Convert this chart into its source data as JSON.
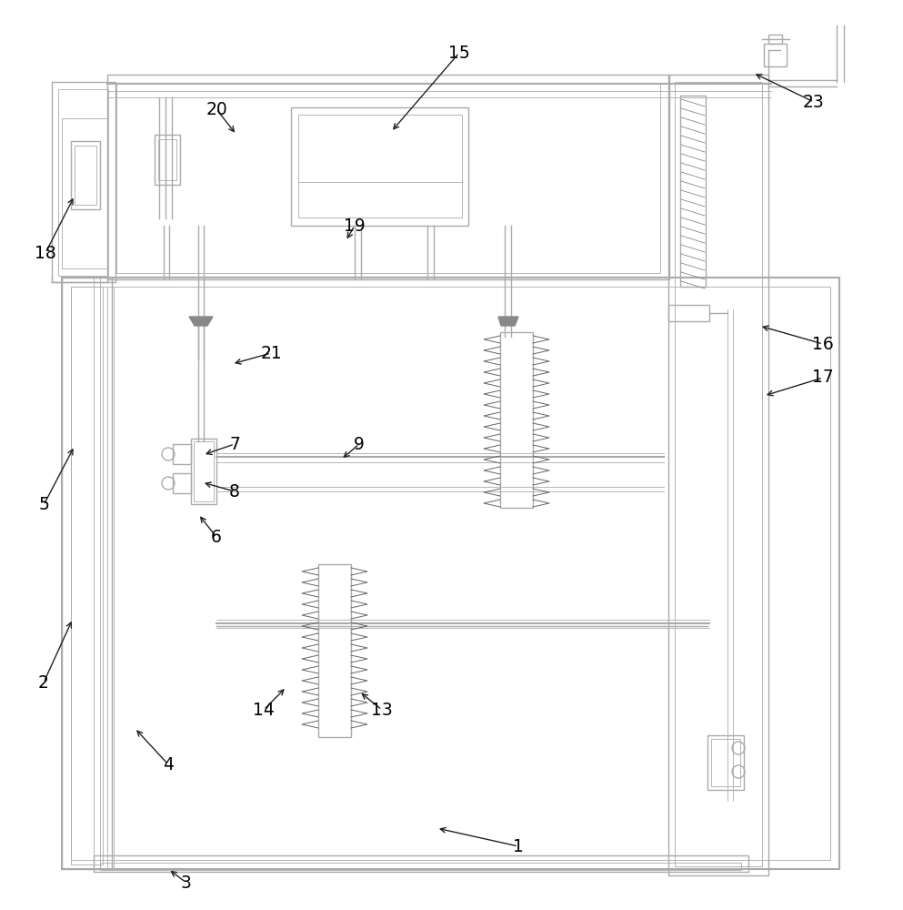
{
  "bg_color": "#ffffff",
  "lc": "#aaaaaa",
  "dc": "#222222",
  "lw_thin": 0.6,
  "lw_med": 1.0,
  "lw_thick": 1.5,
  "labels": {
    "1": [
      570,
      930,
      480,
      910
    ],
    "2": [
      48,
      750,
      80,
      680
    ],
    "3": [
      205,
      970,
      185,
      955
    ],
    "4": [
      185,
      840,
      148,
      800
    ],
    "5": [
      48,
      555,
      82,
      490
    ],
    "6": [
      238,
      590,
      218,
      565
    ],
    "7": [
      258,
      488,
      223,
      500
    ],
    "8": [
      258,
      540,
      222,
      530
    ],
    "9": [
      395,
      488,
      375,
      505
    ],
    "13": [
      420,
      780,
      395,
      760
    ],
    "14": [
      290,
      780,
      315,
      755
    ],
    "15": [
      505,
      58,
      430,
      145
    ],
    "16": [
      905,
      378,
      835,
      358
    ],
    "17": [
      905,
      415,
      840,
      435
    ],
    "18": [
      50,
      278,
      82,
      215
    ],
    "19": [
      390,
      248,
      380,
      265
    ],
    "20": [
      238,
      120,
      260,
      148
    ],
    "21": [
      298,
      388,
      255,
      400
    ],
    "23": [
      895,
      112,
      828,
      80
    ]
  }
}
